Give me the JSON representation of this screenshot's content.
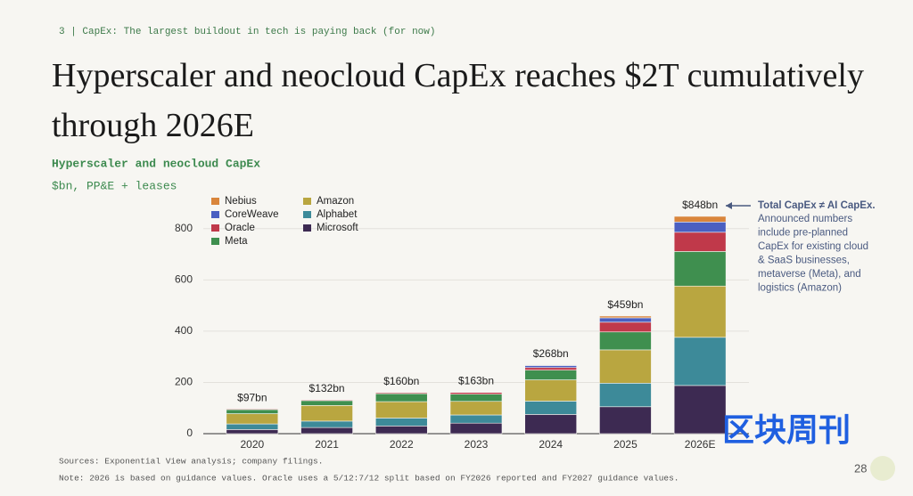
{
  "header": "3 | CapEx: The largest buildout in tech is paying back (for now)",
  "chart_data": {
    "type": "stacked-bar",
    "title": "Hyperscaler and neocloud CapEx reaches $2T cumulatively through 2026E",
    "subtitle": "Hyperscaler and neocloud CapEx",
    "unit_label": "$bn, PP&E + leases",
    "categories": [
      "2020",
      "2021",
      "2022",
      "2023",
      "2024",
      "2025",
      "2026E"
    ],
    "series": [
      {
        "name": "Nebius",
        "color": "#d9853b",
        "values": [
          0,
          0,
          0,
          1,
          2,
          7,
          22
        ]
      },
      {
        "name": "CoreWeave",
        "color": "#4a5fc1",
        "values": [
          0,
          0,
          0,
          1,
          8,
          17,
          40
        ]
      },
      {
        "name": "Oracle",
        "color": "#c0394a",
        "values": [
          3,
          3,
          4,
          7,
          10,
          38,
          75
        ]
      },
      {
        "name": "Meta",
        "color": "#3f8f4f",
        "values": [
          16,
          19,
          31,
          28,
          38,
          70,
          135
        ]
      },
      {
        "name": "Amazon",
        "color": "#b9a640",
        "values": [
          40,
          61,
          64,
          53,
          83,
          130,
          200
        ]
      },
      {
        "name": "Alphabet",
        "color": "#3d8a99",
        "values": [
          22,
          25,
          31,
          32,
          52,
          92,
          188
        ]
      },
      {
        "name": "Microsoft",
        "color": "#3d2a52",
        "values": [
          16,
          24,
          30,
          41,
          75,
          105,
          188
        ]
      }
    ],
    "totals": {
      "values": [
        97,
        132,
        160,
        163,
        268,
        459,
        848
      ],
      "value_labels": [
        "$97bn",
        "$132bn",
        "$160bn",
        "$163bn",
        "$268bn",
        "$459bn",
        "$848bn"
      ]
    },
    "ylim": [
      0,
      900
    ],
    "yticks": [
      0,
      200,
      400,
      600,
      800
    ],
    "grid": true,
    "annotation": {
      "title": "Total CapEx ≠ AI CapEx.",
      "lines": [
        "Announced numbers",
        "include pre-planned",
        "CapEx for existing cloud",
        "& SaaS businesses,",
        "metaverse (Meta), and",
        "logistics (Amazon)"
      ]
    }
  },
  "footer": {
    "sources": "Sources: Exponential View analysis; company filings.",
    "note": "Note: 2026 is based on guidance values. Oracle uses a 5/12:7/12 split based on FY2026 reported and FY2027 guidance values.",
    "page": "28"
  },
  "watermark": "区块周刊"
}
